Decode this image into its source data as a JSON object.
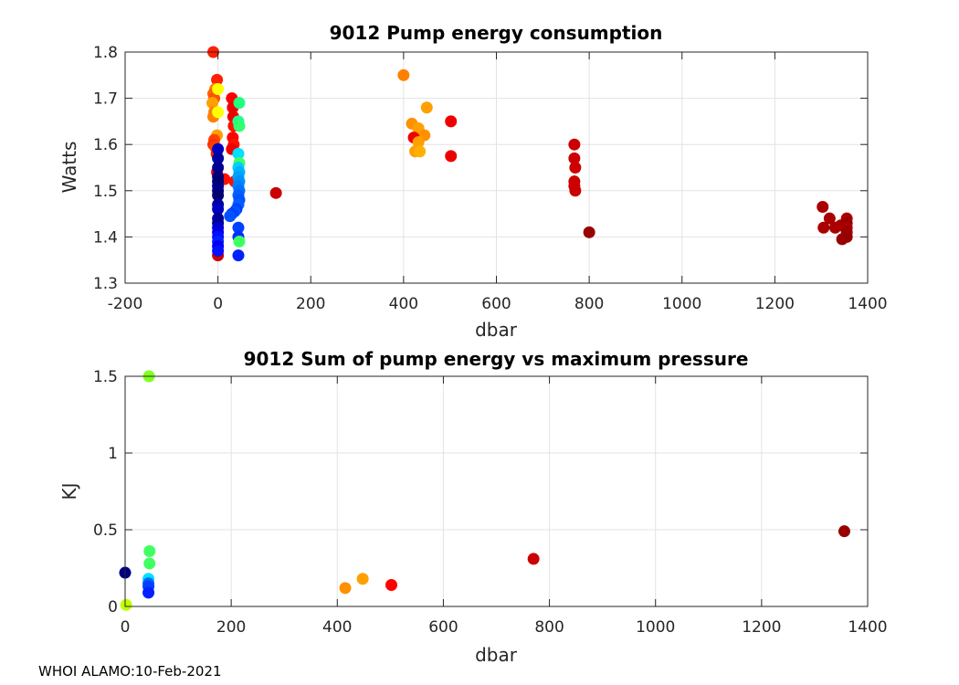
{
  "footer": "WHOI ALAMO:10-Feb-2021",
  "chart_data": [
    {
      "type": "scatter",
      "title": "9012 Pump energy consumption",
      "xlabel": "dbar",
      "ylabel": "Watts",
      "xlim": [
        -200,
        1400
      ],
      "ylim": [
        1.3,
        1.8
      ],
      "xticks": [
        -200,
        0,
        200,
        400,
        600,
        800,
        1000,
        1200,
        1400
      ],
      "xtick_labels": [
        "-200",
        "0",
        "200",
        "400",
        "600",
        "800",
        "1000",
        "1200",
        "1400"
      ],
      "yticks": [
        1.3,
        1.4,
        1.5,
        1.6,
        1.7,
        1.8
      ],
      "ytick_labels": [
        "1.3",
        "1.4",
        "1.5",
        "1.6",
        "1.7",
        "1.8"
      ],
      "grid": true,
      "points": [
        {
          "x": -10,
          "y": 1.8,
          "color": "#ff2000"
        },
        {
          "x": -2,
          "y": 1.74,
          "color": "#ff2000"
        },
        {
          "x": -6,
          "y": 1.72,
          "color": "#ff8000"
        },
        {
          "x": -10,
          "y": 1.71,
          "color": "#ff6000"
        },
        {
          "x": -8,
          "y": 1.7,
          "color": "#ff5000"
        },
        {
          "x": -12,
          "y": 1.69,
          "color": "#ffa000"
        },
        {
          "x": -8,
          "y": 1.67,
          "color": "#ff8000"
        },
        {
          "x": -10,
          "y": 1.66,
          "color": "#ff8000"
        },
        {
          "x": 0,
          "y": 1.72,
          "color": "#ffff00"
        },
        {
          "x": 0,
          "y": 1.67,
          "color": "#ffff00"
        },
        {
          "x": -2,
          "y": 1.62,
          "color": "#ffa000"
        },
        {
          "x": -8,
          "y": 1.61,
          "color": "#ff4000"
        },
        {
          "x": -10,
          "y": 1.6,
          "color": "#ff3000"
        },
        {
          "x": -6,
          "y": 1.595,
          "color": "#ff4000"
        },
        {
          "x": -3,
          "y": 1.58,
          "color": "#ff2000"
        },
        {
          "x": -2,
          "y": 1.54,
          "color": "#ee0000"
        },
        {
          "x": 30,
          "y": 1.7,
          "color": "#ff0000"
        },
        {
          "x": 32,
          "y": 1.68,
          "color": "#ee0000"
        },
        {
          "x": 33,
          "y": 1.66,
          "color": "#ee0000"
        },
        {
          "x": 34,
          "y": 1.64,
          "color": "#ff1000"
        },
        {
          "x": 32,
          "y": 1.615,
          "color": "#ff0000"
        },
        {
          "x": 34,
          "y": 1.6,
          "color": "#ff1000"
        },
        {
          "x": 30,
          "y": 1.59,
          "color": "#ee0000"
        },
        {
          "x": 36,
          "y": 1.52,
          "color": "#ff1000"
        },
        {
          "x": 14,
          "y": 1.525,
          "color": "#ff1000"
        },
        {
          "x": 0,
          "y": 1.36,
          "color": "#cc0000"
        },
        {
          "x": 46,
          "y": 1.69,
          "color": "#20ff80"
        },
        {
          "x": 44,
          "y": 1.65,
          "color": "#20ff90"
        },
        {
          "x": 46,
          "y": 1.64,
          "color": "#30ff70"
        },
        {
          "x": 44,
          "y": 1.58,
          "color": "#00e0ff"
        },
        {
          "x": 46,
          "y": 1.56,
          "color": "#40ff60"
        },
        {
          "x": 44,
          "y": 1.55,
          "color": "#00d0ff"
        },
        {
          "x": 46,
          "y": 1.54,
          "color": "#00b0ff"
        },
        {
          "x": 44,
          "y": 1.53,
          "color": "#00a0ff"
        },
        {
          "x": 46,
          "y": 1.52,
          "color": "#0090ff"
        },
        {
          "x": 44,
          "y": 1.51,
          "color": "#0080ff"
        },
        {
          "x": 46,
          "y": 1.5,
          "color": "#0070ff"
        },
        {
          "x": 44,
          "y": 1.49,
          "color": "#0060ff"
        },
        {
          "x": 46,
          "y": 1.48,
          "color": "#0050ff"
        },
        {
          "x": 44,
          "y": 1.47,
          "color": "#0060ff"
        },
        {
          "x": 40,
          "y": 1.46,
          "color": "#0040ff"
        },
        {
          "x": 36,
          "y": 1.455,
          "color": "#0050ff"
        },
        {
          "x": 30,
          "y": 1.45,
          "color": "#0040ff"
        },
        {
          "x": 26,
          "y": 1.445,
          "color": "#0050ff"
        },
        {
          "x": 44,
          "y": 1.42,
          "color": "#0040ff"
        },
        {
          "x": 44,
          "y": 1.4,
          "color": "#0030ff"
        },
        {
          "x": 46,
          "y": 1.39,
          "color": "#40ff60"
        },
        {
          "x": 44,
          "y": 1.36,
          "color": "#0020ff"
        },
        {
          "x": 0,
          "y": 1.59,
          "color": "#0000c0"
        },
        {
          "x": 0,
          "y": 1.57,
          "color": "#0000a0"
        },
        {
          "x": 0,
          "y": 1.55,
          "color": "#000090"
        },
        {
          "x": 0,
          "y": 1.53,
          "color": "#000080"
        },
        {
          "x": 0,
          "y": 1.52,
          "color": "#000070"
        },
        {
          "x": 0,
          "y": 1.51,
          "color": "#000080"
        },
        {
          "x": 0,
          "y": 1.5,
          "color": "#000090"
        },
        {
          "x": 0,
          "y": 1.49,
          "color": "#000070"
        },
        {
          "x": 0,
          "y": 1.47,
          "color": "#0000a0"
        },
        {
          "x": 0,
          "y": 1.46,
          "color": "#0000c0"
        },
        {
          "x": 0,
          "y": 1.44,
          "color": "#0000a0"
        },
        {
          "x": 0,
          "y": 1.43,
          "color": "#000090"
        },
        {
          "x": 0,
          "y": 1.42,
          "color": "#0000d0"
        },
        {
          "x": 0,
          "y": 1.41,
          "color": "#0000e0"
        },
        {
          "x": 0,
          "y": 1.4,
          "color": "#0010ff"
        },
        {
          "x": 0,
          "y": 1.39,
          "color": "#0020ff"
        },
        {
          "x": 0,
          "y": 1.38,
          "color": "#0000f0"
        },
        {
          "x": 0,
          "y": 1.37,
          "color": "#0010ff"
        },
        {
          "x": 125,
          "y": 1.495,
          "color": "#cc0000"
        },
        {
          "x": 400,
          "y": 1.75,
          "color": "#ff8000"
        },
        {
          "x": 450,
          "y": 1.68,
          "color": "#ffa000"
        },
        {
          "x": 418,
          "y": 1.645,
          "color": "#ff9000"
        },
        {
          "x": 432,
          "y": 1.635,
          "color": "#ffa000"
        },
        {
          "x": 445,
          "y": 1.62,
          "color": "#ff9000"
        },
        {
          "x": 422,
          "y": 1.615,
          "color": "#ee0000"
        },
        {
          "x": 432,
          "y": 1.605,
          "color": "#ffa000"
        },
        {
          "x": 425,
          "y": 1.585,
          "color": "#ffa000"
        },
        {
          "x": 435,
          "y": 1.585,
          "color": "#ffb000"
        },
        {
          "x": 502,
          "y": 1.65,
          "color": "#ee0000"
        },
        {
          "x": 502,
          "y": 1.575,
          "color": "#ee0000"
        },
        {
          "x": 768,
          "y": 1.6,
          "color": "#cc0000"
        },
        {
          "x": 768,
          "y": 1.57,
          "color": "#cc0000"
        },
        {
          "x": 770,
          "y": 1.55,
          "color": "#cc0000"
        },
        {
          "x": 768,
          "y": 1.52,
          "color": "#cc0000"
        },
        {
          "x": 768,
          "y": 1.51,
          "color": "#cc0000"
        },
        {
          "x": 770,
          "y": 1.5,
          "color": "#cc0000"
        },
        {
          "x": 800,
          "y": 1.41,
          "color": "#990000"
        },
        {
          "x": 1303,
          "y": 1.465,
          "color": "#aa0000"
        },
        {
          "x": 1318,
          "y": 1.44,
          "color": "#aa0000"
        },
        {
          "x": 1305,
          "y": 1.42,
          "color": "#aa0000"
        },
        {
          "x": 1330,
          "y": 1.42,
          "color": "#aa0000"
        },
        {
          "x": 1342,
          "y": 1.425,
          "color": "#aa0000"
        },
        {
          "x": 1345,
          "y": 1.395,
          "color": "#990000"
        },
        {
          "x": 1355,
          "y": 1.44,
          "color": "#aa0000"
        },
        {
          "x": 1355,
          "y": 1.43,
          "color": "#990000"
        },
        {
          "x": 1355,
          "y": 1.42,
          "color": "#aa0000"
        },
        {
          "x": 1355,
          "y": 1.41,
          "color": "#990000"
        },
        {
          "x": 1355,
          "y": 1.4,
          "color": "#990000"
        }
      ]
    },
    {
      "type": "scatter",
      "title": "9012 Sum of pump energy vs maximum pressure",
      "xlabel": "dbar",
      "ylabel": "KJ",
      "xlim": [
        0,
        1400
      ],
      "ylim": [
        0,
        1.5
      ],
      "xticks": [
        0,
        200,
        400,
        600,
        800,
        1000,
        1200,
        1400
      ],
      "xtick_labels": [
        "0",
        "200",
        "400",
        "600",
        "800",
        "1000",
        "1200",
        "1400"
      ],
      "yticks": [
        0,
        0.5,
        1,
        1.5
      ],
      "ytick_labels": [
        "0",
        "0.5",
        "1",
        "1.5"
      ],
      "grid": true,
      "points": [
        {
          "x": 45,
          "y": 1.5,
          "color": "#80ff20"
        },
        {
          "x": 46,
          "y": 0.36,
          "color": "#40ff60"
        },
        {
          "x": 46,
          "y": 0.28,
          "color": "#40ff60"
        },
        {
          "x": 44,
          "y": 0.18,
          "color": "#00e0ff"
        },
        {
          "x": 44,
          "y": 0.15,
          "color": "#0060ff"
        },
        {
          "x": 44,
          "y": 0.13,
          "color": "#0040ff"
        },
        {
          "x": 44,
          "y": 0.09,
          "color": "#0020ff"
        },
        {
          "x": 0,
          "y": 0.22,
          "color": "#000080"
        },
        {
          "x": 2,
          "y": 0.01,
          "color": "#c0ff00"
        },
        {
          "x": 415,
          "y": 0.12,
          "color": "#ff9000"
        },
        {
          "x": 448,
          "y": 0.18,
          "color": "#ffa000"
        },
        {
          "x": 502,
          "y": 0.14,
          "color": "#ff0000"
        },
        {
          "x": 770,
          "y": 0.31,
          "color": "#cc0000"
        },
        {
          "x": 1356,
          "y": 0.49,
          "color": "#990000"
        }
      ]
    }
  ]
}
